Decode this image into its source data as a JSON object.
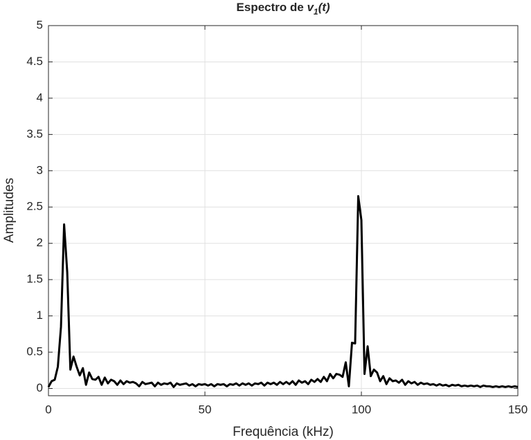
{
  "chart_data": {
    "type": "line",
    "title": [
      "Espectro de ",
      "v",
      "1",
      "(t)"
    ],
    "xlabel": "Frequência (kHz)",
    "ylabel": "Amplitudes",
    "x": [
      0,
      1,
      2,
      3,
      4,
      5,
      6,
      7,
      8,
      9,
      10,
      11,
      12,
      13,
      14,
      15,
      16,
      17,
      18,
      19,
      20,
      21,
      22,
      23,
      24,
      25,
      26,
      27,
      28,
      29,
      30,
      31,
      32,
      33,
      34,
      35,
      36,
      37,
      38,
      39,
      40,
      41,
      42,
      43,
      44,
      45,
      46,
      47,
      48,
      49,
      50,
      51,
      52,
      53,
      54,
      55,
      56,
      57,
      58,
      59,
      60,
      61,
      62,
      63,
      64,
      65,
      66,
      67,
      68,
      69,
      70,
      71,
      72,
      73,
      74,
      75,
      76,
      77,
      78,
      79,
      80,
      81,
      82,
      83,
      84,
      85,
      86,
      87,
      88,
      89,
      90,
      91,
      92,
      93,
      94,
      95,
      96,
      97,
      98,
      99,
      100,
      101,
      102,
      103,
      104,
      105,
      106,
      107,
      108,
      109,
      110,
      111,
      112,
      113,
      114,
      115,
      116,
      117,
      118,
      119,
      120,
      121,
      122,
      123,
      124,
      125,
      126,
      127,
      128,
      129,
      130,
      131,
      132,
      133,
      134,
      135,
      136,
      137,
      138,
      139,
      140,
      141,
      142,
      143,
      144,
      145,
      146,
      147,
      148,
      149,
      150
    ],
    "values": [
      0.02,
      0.1,
      0.12,
      0.3,
      0.85,
      2.26,
      1.6,
      0.26,
      0.44,
      0.3,
      0.18,
      0.28,
      0.05,
      0.22,
      0.13,
      0.12,
      0.16,
      0.05,
      0.15,
      0.07,
      0.12,
      0.1,
      0.05,
      0.11,
      0.06,
      0.1,
      0.08,
      0.09,
      0.07,
      0.03,
      0.09,
      0.06,
      0.07,
      0.08,
      0.03,
      0.08,
      0.05,
      0.07,
      0.06,
      0.08,
      0.02,
      0.07,
      0.05,
      0.06,
      0.07,
      0.04,
      0.06,
      0.03,
      0.06,
      0.05,
      0.06,
      0.04,
      0.06,
      0.03,
      0.06,
      0.05,
      0.06,
      0.03,
      0.06,
      0.05,
      0.07,
      0.04,
      0.07,
      0.05,
      0.07,
      0.04,
      0.07,
      0.06,
      0.08,
      0.04,
      0.08,
      0.06,
      0.08,
      0.05,
      0.09,
      0.06,
      0.09,
      0.06,
      0.1,
      0.05,
      0.11,
      0.08,
      0.1,
      0.06,
      0.12,
      0.09,
      0.13,
      0.09,
      0.16,
      0.1,
      0.2,
      0.14,
      0.2,
      0.19,
      0.16,
      0.36,
      0.03,
      0.63,
      0.62,
      2.65,
      2.32,
      0.2,
      0.58,
      0.17,
      0.26,
      0.22,
      0.1,
      0.17,
      0.06,
      0.14,
      0.1,
      0.11,
      0.08,
      0.12,
      0.05,
      0.1,
      0.07,
      0.09,
      0.05,
      0.08,
      0.06,
      0.07,
      0.05,
      0.06,
      0.04,
      0.06,
      0.04,
      0.05,
      0.03,
      0.05,
      0.04,
      0.05,
      0.03,
      0.04,
      0.03,
      0.04,
      0.03,
      0.04,
      0.02,
      0.04,
      0.03,
      0.03,
      0.02,
      0.03,
      0.02,
      0.03,
      0.02,
      0.03,
      0.02,
      0.03,
      0.02
    ],
    "color": "#000000",
    "xlim": [
      0,
      150
    ],
    "xticks": [
      0,
      50,
      100,
      150
    ],
    "ylim": [
      -0.1,
      5
    ],
    "yticks": [
      0,
      0.5,
      1,
      1.5,
      2,
      2.5,
      3,
      3.5,
      4,
      4.5,
      5
    ],
    "grid": true
  }
}
